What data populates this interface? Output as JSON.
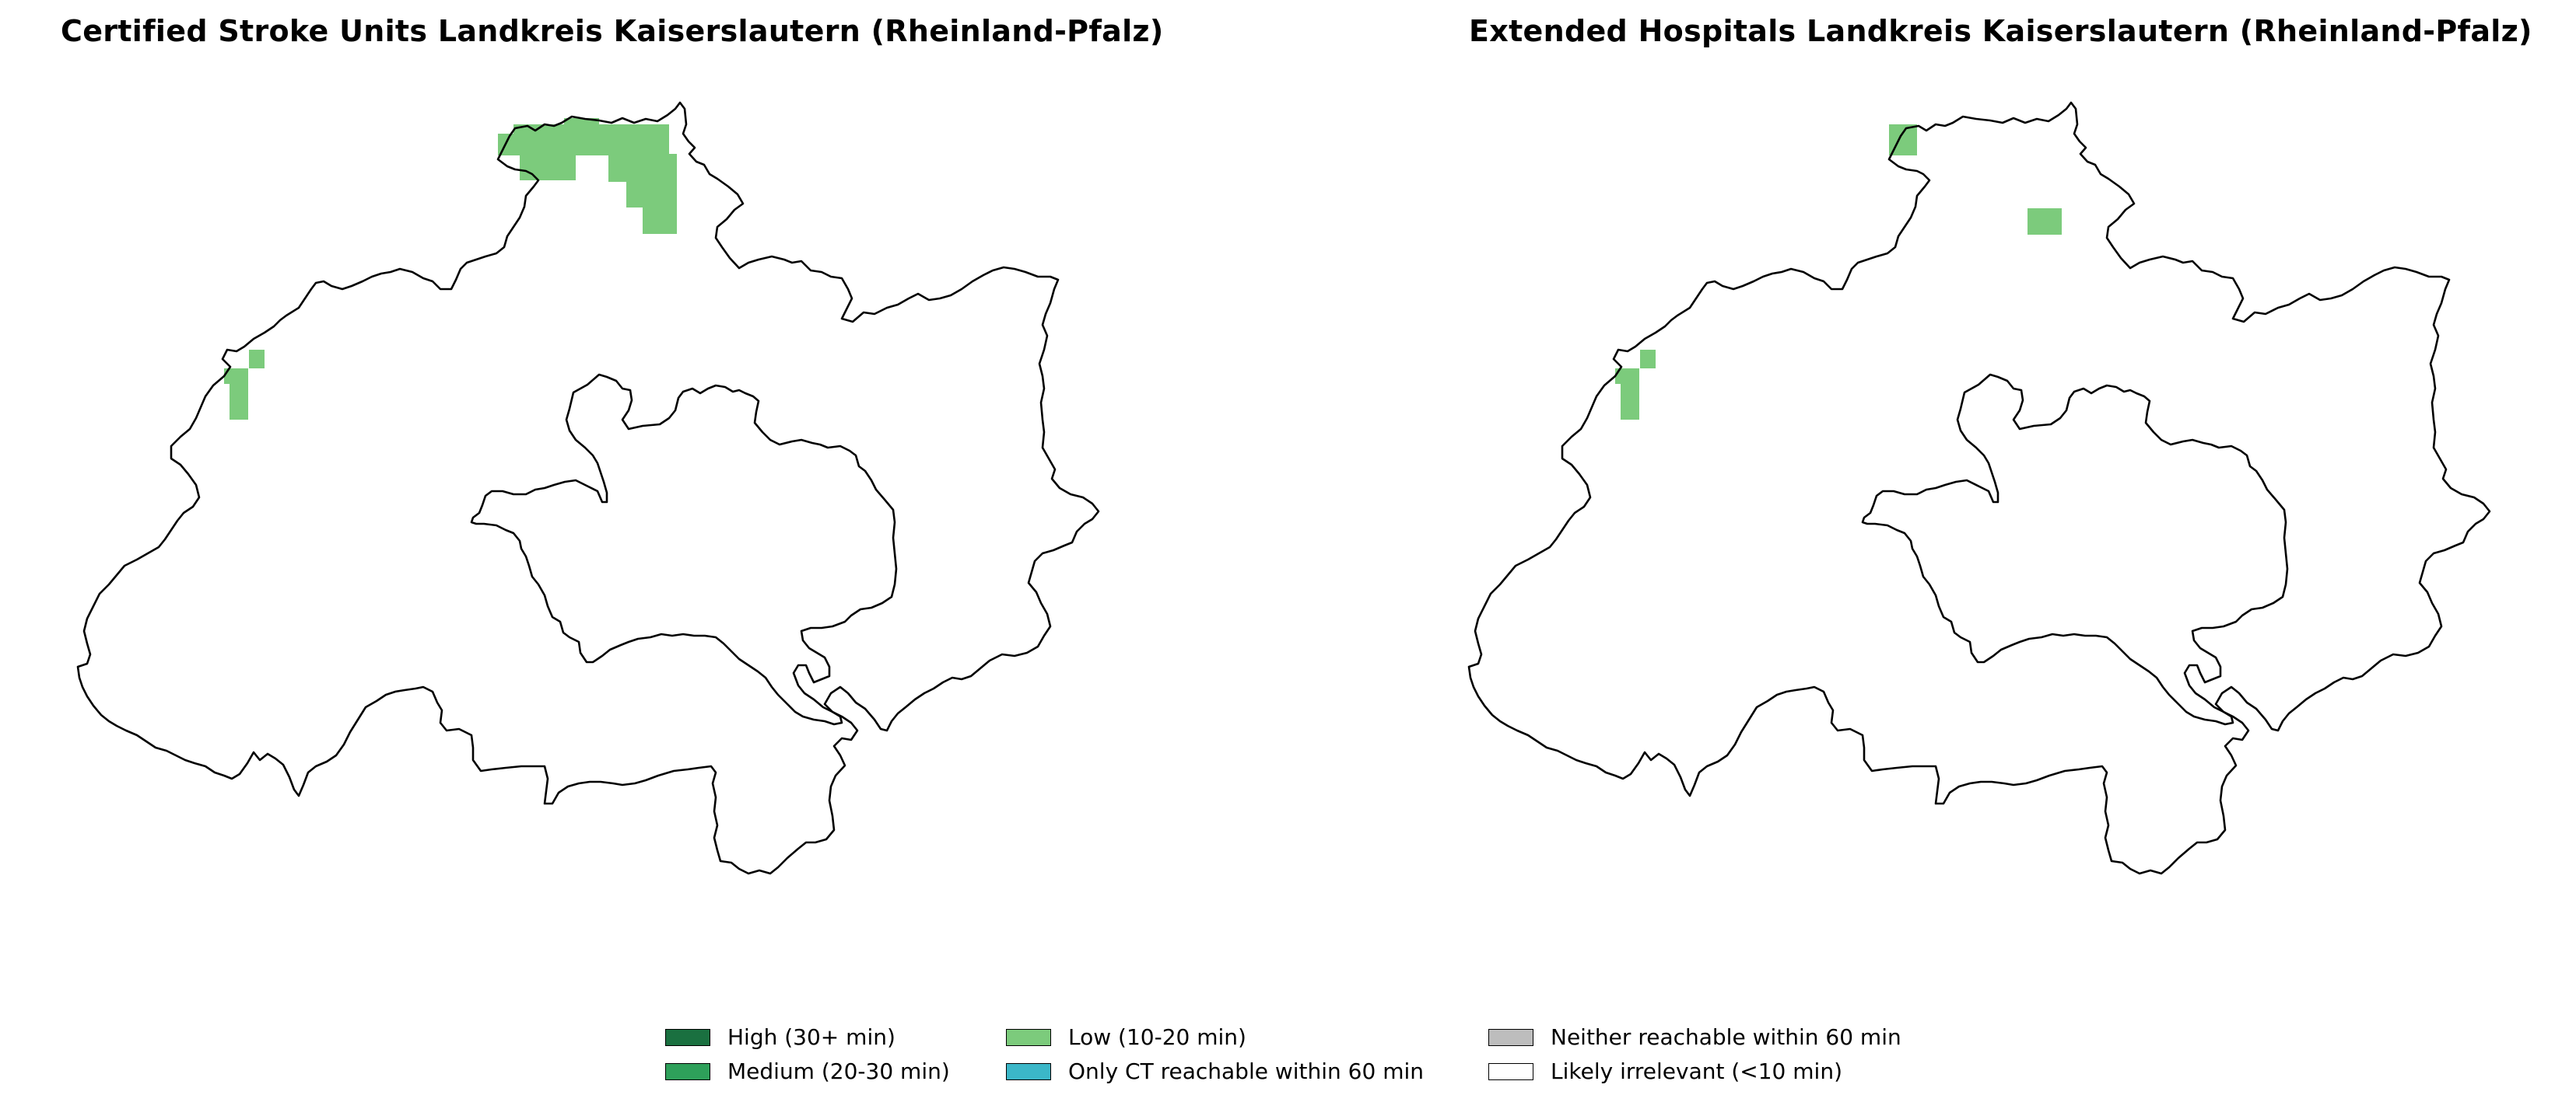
{
  "panels": [
    {
      "title": "Certified Stroke Units Landkreis Kaiserslautern (Rheinland-Pfalz)"
    },
    {
      "title": "Extended Hospitals Landkreis Kaiserslautern (Rheinland-Pfalz)"
    }
  ],
  "legend": [
    {
      "label": "High (30+ min)",
      "color": "#1a7040"
    },
    {
      "label": "Medium (20-30 min)",
      "color": "#2ea05a"
    },
    {
      "label": "Low (10-20 min)",
      "color": "#7ccb7c"
    },
    {
      "label": "Only CT reachable within 60 min",
      "color": "#3bb7c8"
    },
    {
      "label": "Neither reachable within 60 min",
      "color": "#bdbdbd"
    },
    {
      "label": "Likely irrelevant (<10 min)",
      "color": "#ffffff"
    }
  ]
}
